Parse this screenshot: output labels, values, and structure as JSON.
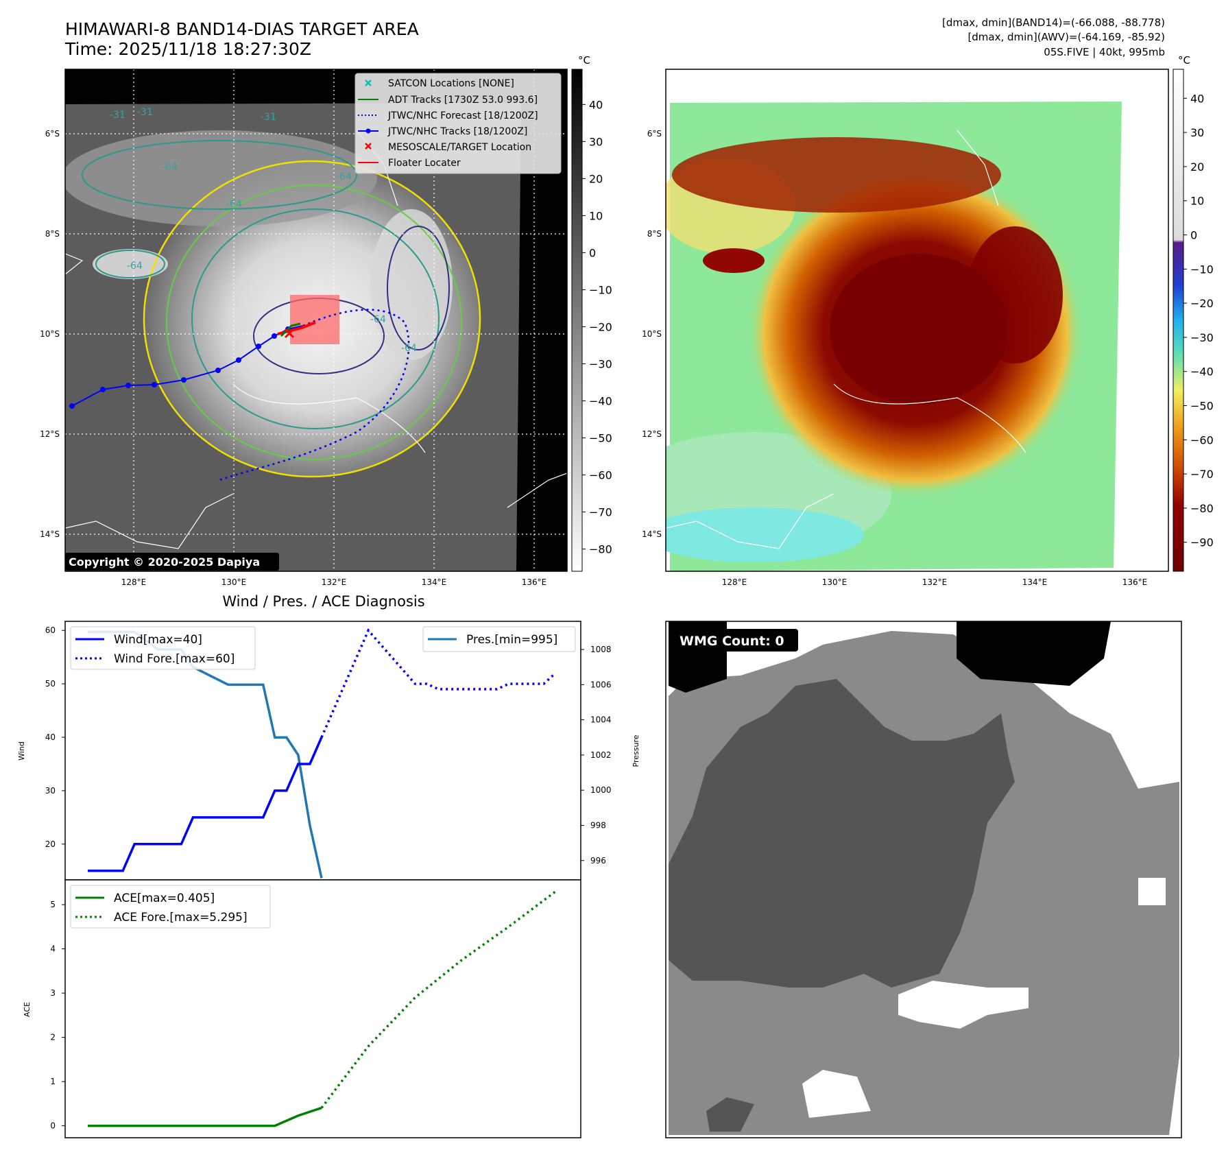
{
  "header": {
    "title": "HIMAWARI-8 BAND14-DIAS TARGET AREA",
    "time": "Time: 2025/11/18 18:27:30Z",
    "stats_band14": "[dmax, dmin](BAND14)=(-66.088, -88.778)",
    "stats_awv": "[dmax, dmin](AWV)=(-64.169, -85.92)",
    "storm_info": "05S.FIVE | 40kt, 995mb"
  },
  "map_left": {
    "copyright": "Copyright © 2020-2025 Dapiya",
    "lat_labels": [
      "6°S",
      "8°S",
      "10°S",
      "12°S",
      "14°S"
    ],
    "lon_labels": [
      "128°E",
      "130°E",
      "132°E",
      "134°E",
      "136°E"
    ],
    "contour_labels": [
      "-64",
      "-64",
      "-64",
      "-64",
      "-64",
      "-64",
      "-31",
      "-31",
      "-31"
    ],
    "legend": [
      {
        "label": "SATCON Locations [NONE]",
        "color": "#00bfbf",
        "marker": "x"
      },
      {
        "label": "ADT Tracks [1730Z 53.0 993.6]",
        "color": "#008000",
        "marker": "line"
      },
      {
        "label": "JTWC/NHC Forecast [18/1200Z]",
        "color": "#0000ff",
        "marker": "dotted"
      },
      {
        "label": "JTWC/NHC Tracks [18/1200Z]",
        "color": "#0000ff",
        "marker": "line-dot"
      },
      {
        "label": "MESOSCALE/TARGET Location",
        "color": "#ff0000",
        "marker": "x"
      },
      {
        "label": "Floater Locater",
        "color": "#ff0000",
        "marker": "line"
      }
    ],
    "colorbar": {
      "unit": "°C",
      "ticks": [
        "40",
        "30",
        "20",
        "10",
        "0",
        "−10",
        "−20",
        "−30",
        "−40",
        "−50",
        "−60",
        "−70",
        "−80"
      ]
    }
  },
  "map_right": {
    "lat_labels": [
      "6°S",
      "8°S",
      "10°S",
      "12°S",
      "14°S"
    ],
    "lon_labels": [
      "128°E",
      "130°E",
      "132°E",
      "134°E",
      "136°E"
    ],
    "colorbar": {
      "unit": "°C",
      "ticks": [
        "40",
        "30",
        "20",
        "10",
        "0",
        "−10",
        "−20",
        "−30",
        "−40",
        "−50",
        "−60",
        "−70",
        "−80",
        "−90"
      ]
    }
  },
  "wmg_panel": {
    "label": "WMG Count: 0"
  },
  "chart_data": [
    {
      "type": "line",
      "title": "Wind / Pres. / ACE Diagnosis",
      "ylabel": "Wind",
      "y2label": "Pressure",
      "ylim": [
        13.3,
        61.7
      ],
      "y_ticks": [
        "20",
        "30",
        "40",
        "50",
        "60"
      ],
      "y2lim": [
        994.9,
        1009.6
      ],
      "y2_ticks": [
        "996",
        "998",
        "1000",
        "1002",
        "1004",
        "1006",
        "1008"
      ],
      "x": [
        0,
        1,
        2,
        3,
        4,
        5,
        6,
        7,
        8,
        9,
        10,
        11,
        12,
        13,
        14,
        15,
        16,
        17,
        18,
        19,
        20
      ],
      "series": [
        {
          "name": "Wind[max=40]",
          "color": "#0000ff",
          "style": "solid",
          "x": [
            0,
            3,
            4,
            8,
            9,
            15,
            16,
            17,
            18,
            19,
            20
          ],
          "values": [
            15,
            15,
            20,
            20,
            25,
            25,
            30,
            30,
            35,
            35,
            40
          ]
        },
        {
          "name": "Wind Fore.[max=60]",
          "color": "#0000ff",
          "style": "dotted",
          "x": [
            20,
            24,
            28,
            29,
            30,
            31,
            32,
            33,
            34,
            35,
            36,
            37,
            38,
            39,
            40
          ],
          "values": [
            40,
            60,
            50,
            50,
            49,
            49,
            49,
            49,
            49,
            49,
            50,
            50,
            50,
            50,
            52
          ]
        },
        {
          "name": "Pres.[min=995]",
          "color": "#1f77b4",
          "style": "solid",
          "x": [
            0,
            4,
            6,
            8,
            9,
            12,
            13,
            15,
            16,
            17,
            18,
            19,
            20
          ],
          "values": [
            1009,
            1009,
            1008,
            1008,
            1007,
            1006,
            1006,
            1006,
            1003,
            1003,
            1002,
            998,
            995
          ]
        }
      ],
      "legend_wind": [
        "Wind[max=40]",
        "Wind Fore.[max=60]"
      ],
      "legend_pres": [
        "Pres.[min=995]"
      ]
    },
    {
      "type": "line",
      "ylabel": "ACE",
      "ylim": [
        -0.27,
        5.56
      ],
      "y_ticks": [
        "0",
        "1",
        "2",
        "3",
        "4",
        "5"
      ],
      "series": [
        {
          "name": "ACE[max=0.405]",
          "color": "#008000",
          "style": "solid",
          "x": [
            0,
            16,
            18,
            20
          ],
          "values": [
            0,
            0,
            0.23,
            0.405
          ]
        },
        {
          "name": "ACE Fore.[max=5.295]",
          "color": "#008000",
          "style": "dotted",
          "x": [
            20,
            24,
            28,
            32,
            36,
            40
          ],
          "values": [
            0.405,
            1.8,
            2.9,
            3.75,
            4.5,
            5.295
          ]
        }
      ],
      "legend": [
        "ACE[max=0.405]",
        "ACE Fore.[max=5.295]"
      ]
    }
  ]
}
